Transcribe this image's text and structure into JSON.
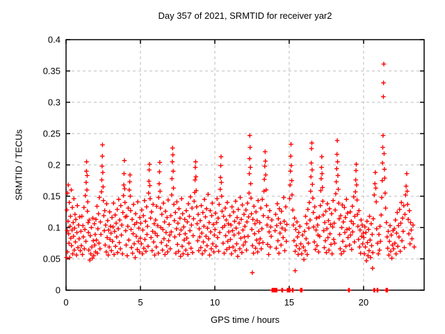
{
  "chart_data": {
    "type": "scatter",
    "title": "Day 357 of 2021, SRMTID for receiver yar2",
    "xlabel": "GPS time / hours",
    "ylabel": "SRMTID / TECUs",
    "xlim": [
      0,
      24.07
    ],
    "ylim": [
      0,
      0.4
    ],
    "x_ticks": [
      0,
      5,
      10,
      15,
      20
    ],
    "x_tick_labels": [
      "0",
      "5",
      "10",
      "15",
      "20"
    ],
    "y_ticks": [
      0,
      0.05,
      0.1,
      0.15,
      0.2,
      0.25,
      0.3,
      0.35,
      0.4
    ],
    "y_tick_labels": [
      "0",
      "0.05",
      "0.1",
      "0.15",
      "0.2",
      "0.25",
      "0.3",
      "0.35",
      "0.4"
    ],
    "grid": true,
    "legend": "none",
    "marker": {
      "shape": "plus",
      "color": "#ff0000",
      "size": 7
    },
    "grid_color": "#b9b9b9",
    "axis_color": "#000000",
    "points_format": "flat [x1,y1,x2,y2,...] hours vs TECUs",
    "points": [
      0.03,
      0.052,
      0.05,
      0.128,
      0.08,
      0.095,
      0.1,
      0.155,
      0.1,
      0.061,
      0.13,
      0.11,
      0.15,
      0.168,
      0.17,
      0.09,
      0.2,
      0.075,
      0.22,
      0.14,
      0.25,
      0.052,
      0.27,
      0.102,
      0.3,
      0.118,
      0.32,
      0.083,
      0.35,
      0.16,
      0.37,
      0.071,
      0.4,
      0.096,
      0.42,
      0.132,
      0.45,
      0.058,
      0.48,
      0.108,
      0.5,
      0.086,
      0.53,
      0.146,
      0.55,
      0.064,
      0.58,
      0.099,
      0.6,
      0.121,
      0.63,
      0.077,
      0.66,
      0.113,
      0.7,
      0.056,
      0.73,
      0.092,
      0.76,
      0.135,
      0.8,
      0.068,
      0.84,
      0.104,
      0.88,
      0.082,
      0.92,
      0.117,
      0.96,
      0.063,
      1.0,
      0.094,
      1.03,
      0.071,
      1.06,
      0.118,
      1.1,
      0.057,
      1.13,
      0.103,
      1.16,
      0.085,
      1.2,
      0.132,
      1.23,
      0.066,
      1.26,
      0.097,
      1.3,
      0.151,
      1.33,
      0.078,
      1.35,
      0.172,
      1.37,
      0.19,
      1.38,
      0.205,
      1.4,
      0.16,
      1.42,
      0.183,
      1.44,
      0.126,
      1.46,
      0.141,
      1.48,
      0.108,
      1.5,
      0.092,
      1.53,
      0.064,
      1.56,
      0.112,
      1.6,
      0.048,
      1.63,
      0.087,
      1.66,
      0.058,
      1.7,
      0.1,
      1.73,
      0.069,
      1.76,
      0.051,
      1.8,
      0.115,
      1.83,
      0.079,
      1.86,
      0.055,
      1.9,
      0.106,
      1.93,
      0.072,
      1.96,
      0.089,
      1.98,
      0.061,
      2.01,
      0.113,
      2.04,
      0.08,
      2.08,
      0.134,
      2.11,
      0.059,
      2.14,
      0.098,
      2.18,
      0.122,
      2.21,
      0.075,
      2.24,
      0.148,
      2.28,
      0.066,
      2.31,
      0.109,
      2.34,
      0.089,
      2.38,
      0.157,
      2.4,
      0.176,
      2.42,
      0.198,
      2.44,
      0.214,
      2.45,
      0.232,
      2.47,
      0.188,
      2.49,
      0.165,
      2.51,
      0.143,
      2.54,
      0.119,
      2.57,
      0.095,
      2.6,
      0.127,
      2.63,
      0.072,
      2.66,
      0.104,
      2.7,
      0.061,
      2.73,
      0.138,
      2.76,
      0.084,
      2.8,
      0.111,
      2.83,
      0.056,
      2.86,
      0.096,
      2.9,
      0.069,
      2.93,
      0.125,
      2.96,
      0.081,
      2.99,
      0.102,
      3.02,
      0.091,
      3.05,
      0.063,
      3.09,
      0.116,
      3.12,
      0.078,
      3.16,
      0.101,
      3.19,
      0.139,
      3.23,
      0.057,
      3.26,
      0.094,
      3.3,
      0.12,
      3.33,
      0.07,
      3.37,
      0.107,
      3.4,
      0.085,
      3.44,
      0.129,
      3.47,
      0.06,
      3.51,
      0.098,
      3.54,
      0.145,
      3.58,
      0.076,
      3.61,
      0.112,
      3.65,
      0.066,
      3.68,
      0.135,
      3.72,
      0.088,
      3.75,
      0.104,
      3.79,
      0.058,
      3.82,
      0.124,
      3.86,
      0.151,
      3.88,
      0.168,
      3.9,
      0.186,
      3.92,
      0.207,
      3.94,
      0.162,
      3.96,
      0.14,
      3.98,
      0.117,
      4.01,
      0.095,
      4.04,
      0.072,
      4.08,
      0.118,
      4.11,
      0.055,
      4.15,
      0.102,
      4.18,
      0.131,
      4.22,
      0.08,
      4.25,
      0.16,
      4.28,
      0.173,
      4.3,
      0.184,
      4.32,
      0.15,
      4.34,
      0.127,
      4.37,
      0.097,
      4.4,
      0.068,
      4.44,
      0.113,
      4.47,
      0.059,
      4.51,
      0.09,
      4.54,
      0.137,
      4.58,
      0.074,
      4.61,
      0.105,
      4.65,
      0.052,
      4.68,
      0.122,
      4.72,
      0.086,
      4.75,
      0.108,
      4.79,
      0.065,
      4.82,
      0.141,
      4.86,
      0.078,
      4.89,
      0.099,
      4.93,
      0.061,
      4.96,
      0.116,
      4.99,
      0.083,
      5.02,
      0.107,
      5.06,
      0.074,
      5.09,
      0.128,
      5.13,
      0.058,
      5.16,
      0.096,
      5.2,
      0.119,
      5.23,
      0.067,
      5.27,
      0.143,
      5.3,
      0.081,
      5.34,
      0.11,
      5.37,
      0.062,
      5.41,
      0.133,
      5.44,
      0.089,
      5.48,
      0.102,
      5.51,
      0.07,
      5.55,
      0.155,
      5.57,
      0.174,
      5.59,
      0.192,
      5.61,
      0.201,
      5.63,
      0.167,
      5.65,
      0.146,
      5.68,
      0.115,
      5.71,
      0.084,
      5.75,
      0.125,
      5.78,
      0.063,
      5.82,
      0.094,
      5.85,
      0.137,
      5.89,
      0.077,
      5.92,
      0.106,
      5.96,
      0.056,
      5.99,
      0.091,
      6.02,
      0.112,
      6.06,
      0.069,
      6.09,
      0.134,
      6.13,
      0.087,
      6.16,
      0.103,
      6.2,
      0.059,
      6.23,
      0.148,
      6.26,
      0.17,
      6.28,
      0.189,
      6.3,
      0.204,
      6.32,
      0.158,
      6.34,
      0.131,
      6.37,
      0.1,
      6.41,
      0.076,
      6.44,
      0.121,
      6.48,
      0.064,
      6.51,
      0.097,
      6.55,
      0.139,
      6.58,
      0.082,
      6.62,
      0.109,
      6.65,
      0.057,
      6.69,
      0.126,
      6.72,
      0.092,
      6.76,
      0.071,
      6.79,
      0.116,
      6.83,
      0.061,
      6.86,
      0.144,
      6.9,
      0.079,
      6.93,
      0.105,
      6.97,
      0.088,
      7.0,
      0.066,
      7.04,
      0.119,
      7.07,
      0.093,
      7.1,
      0.152,
      7.12,
      0.178,
      7.14,
      0.205,
      7.16,
      0.227,
      7.18,
      0.216,
      7.2,
      0.19,
      7.22,
      0.163,
      7.25,
      0.137,
      7.28,
      0.111,
      7.31,
      0.085,
      7.35,
      0.124,
      7.38,
      0.059,
      7.42,
      0.098,
      7.45,
      0.141,
      7.49,
      0.073,
      7.52,
      0.107,
      7.56,
      0.062,
      7.59,
      0.13,
      7.63,
      0.089,
      7.66,
      0.115,
      7.7,
      0.054,
      7.73,
      0.096,
      7.77,
      0.146,
      7.8,
      0.07,
      7.84,
      0.122,
      7.87,
      0.058,
      7.91,
      0.101,
      7.94,
      0.08,
      7.98,
      0.113,
      8.01,
      0.09,
      8.05,
      0.064,
      8.08,
      0.127,
      8.12,
      0.083,
      8.15,
      0.109,
      8.19,
      0.057,
      8.22,
      0.138,
      8.26,
      0.075,
      8.29,
      0.118,
      8.33,
      0.095,
      8.36,
      0.149,
      8.4,
      0.067,
      8.43,
      0.104,
      8.47,
      0.131,
      8.5,
      0.06,
      8.54,
      0.087,
      8.57,
      0.114,
      8.61,
      0.142,
      8.64,
      0.156,
      8.67,
      0.176,
      8.69,
      0.196,
      8.71,
      0.205,
      8.73,
      0.181,
      8.75,
      0.159,
      8.78,
      0.133,
      8.81,
      0.106,
      8.85,
      0.079,
      8.88,
      0.121,
      8.92,
      0.063,
      8.95,
      0.098,
      8.99,
      0.085,
      9.02,
      0.111,
      9.06,
      0.068,
      9.09,
      0.135,
      9.13,
      0.091,
      9.16,
      0.058,
      9.2,
      0.124,
      9.23,
      0.077,
      9.27,
      0.102,
      9.3,
      0.145,
      9.34,
      0.063,
      9.37,
      0.117,
      9.41,
      0.086,
      9.44,
      0.13,
      9.48,
      0.071,
      9.51,
      0.099,
      9.55,
      0.153,
      9.58,
      0.082,
      9.62,
      0.108,
      9.65,
      0.056,
      9.69,
      0.127,
      9.72,
      0.093,
      9.76,
      0.066,
      9.79,
      0.119,
      9.83,
      0.139,
      9.86,
      0.074,
      9.9,
      0.105,
      9.93,
      0.061,
      9.97,
      0.088,
      10.01,
      0.097,
      10.05,
      0.123,
      10.08,
      0.07,
      10.12,
      0.108,
      10.15,
      0.146,
      10.19,
      0.084,
      10.22,
      0.115,
      10.26,
      0.062,
      10.29,
      0.137,
      10.33,
      0.092,
      10.36,
      0.161,
      10.38,
      0.18,
      10.4,
      0.199,
      10.42,
      0.213,
      10.44,
      0.172,
      10.46,
      0.15,
      10.49,
      0.126,
      10.52,
      0.1,
      10.56,
      0.075,
      10.59,
      0.118,
      10.63,
      0.059,
      10.66,
      0.103,
      10.7,
      0.131,
      10.73,
      0.087,
      10.77,
      0.112,
      10.8,
      0.065,
      10.84,
      0.14,
      10.87,
      0.078,
      10.91,
      0.106,
      10.94,
      0.093,
      10.98,
      0.068,
      11.01,
      0.119,
      11.05,
      0.081,
      11.08,
      0.104,
      11.12,
      0.058,
      11.15,
      0.133,
      11.19,
      0.095,
      11.22,
      0.069,
      11.26,
      0.125,
      11.29,
      0.088,
      11.33,
      0.11,
      11.36,
      0.063,
      11.4,
      0.142,
      11.43,
      0.099,
      11.47,
      0.074,
      11.5,
      0.116,
      11.54,
      0.054,
      11.57,
      0.129,
      11.61,
      0.091,
      11.64,
      0.107,
      11.68,
      0.066,
      11.71,
      0.148,
      11.75,
      0.083,
      11.78,
      0.113,
      11.82,
      0.06,
      11.85,
      0.136,
      11.89,
      0.096,
      11.92,
      0.072,
      11.96,
      0.121,
      11.99,
      0.085,
      12.02,
      0.102,
      12.06,
      0.077,
      12.09,
      0.128,
      12.13,
      0.064,
      12.16,
      0.109,
      12.2,
      0.139,
      12.23,
      0.086,
      12.27,
      0.117,
      12.3,
      0.155,
      12.32,
      0.186,
      12.34,
      0.21,
      12.35,
      0.247,
      12.37,
      0.228,
      12.39,
      0.196,
      12.41,
      0.17,
      12.43,
      0.147,
      12.46,
      0.122,
      12.49,
      0.097,
      12.52,
      0.028,
      12.53,
      0.071,
      12.56,
      0.113,
      12.6,
      0.059,
      12.63,
      0.134,
      12.67,
      0.09,
      12.7,
      0.106,
      12.74,
      0.067,
      12.77,
      0.125,
      12.81,
      0.08,
      12.84,
      0.111,
      12.88,
      0.061,
      12.91,
      0.143,
      12.95,
      0.094,
      12.98,
      0.075,
      13.02,
      0.108,
      13.05,
      0.082,
      13.09,
      0.131,
      13.12,
      0.066,
      13.16,
      0.098,
      13.19,
      0.145,
      13.23,
      0.076,
      13.26,
      0.119,
      13.3,
      0.158,
      13.33,
      0.177,
      13.36,
      0.198,
      13.38,
      0.221,
      13.4,
      0.206,
      13.42,
      0.184,
      13.45,
      0.16,
      13.48,
      0.135,
      13.51,
      0.104,
      13.55,
      0.073,
      13.58,
      0.116,
      13.62,
      0.057,
      13.65,
      0.093,
      13.69,
      0.127,
      13.72,
      0.069,
      13.76,
      0.101,
      13.79,
      0.086,
      13.83,
      0.112,
      13.85,
      0,
      13.9,
      0,
      13.94,
      0,
      13.99,
      0,
      14.03,
      0,
      14.08,
      0,
      14.12,
      0,
      14.17,
      0,
      14.05,
      0.095,
      14.09,
      0.121,
      14.13,
      0.067,
      14.16,
      0.103,
      14.2,
      0.138,
      14.24,
      0.079,
      14.27,
      0.114,
      14.31,
      0.059,
      14.34,
      0.13,
      14.38,
      0.091,
      14.41,
      0.107,
      14.45,
      0.072,
      14.48,
      0.126,
      14.5,
      0,
      14.53,
      0,
      14.56,
      0,
      14.52,
      0.099,
      14.59,
      0.084,
      14.63,
      0.148,
      14.66,
      0.11,
      14.7,
      0.063,
      14.73,
      0.096,
      14.77,
      0.133,
      14.8,
      0.078,
      14.84,
      0.105,
      14.87,
      0,
      14.91,
      0,
      14.95,
      0,
      14.99,
      0,
      15.02,
      0,
      15.06,
      0,
      15.03,
      0.146,
      15.06,
      0.168,
      15.08,
      0.19,
      15.1,
      0.214,
      15.12,
      0.233,
      15.14,
      0.199,
      15.17,
      0.175,
      15.19,
      0.152,
      15.21,
      0,
      15.26,
      0,
      15.24,
      0.128,
      15.28,
      0.104,
      15.32,
      0.079,
      15.36,
      0.115,
      15.4,
      0.031,
      15.4,
      0.062,
      15.44,
      0.097,
      15.48,
      0.071,
      15.52,
      0.109,
      15.56,
      0.085,
      15.6,
      0.057,
      15.64,
      0.092,
      15.68,
      0.066,
      15.72,
      0.102,
      15.76,
      0,
      15.81,
      0,
      15.86,
      0,
      15.78,
      0.074,
      15.84,
      0.058,
      15.9,
      0.088,
      15.95,
      0.069,
      15.99,
      0.049,
      16.03,
      0.094,
      16.07,
      0.063,
      16.1,
      0.118,
      16.14,
      0.082,
      16.18,
      0.106,
      16.21,
      0.057,
      16.25,
      0.129,
      16.29,
      0.075,
      16.32,
      0.099,
      16.36,
      0.14,
      16.4,
      0.112,
      16.44,
      0.158,
      16.46,
      0.181,
      16.48,
      0.203,
      16.5,
      0.226,
      16.52,
      0.235,
      16.54,
      0.192,
      16.56,
      0.169,
      16.59,
      0.147,
      16.62,
      0.124,
      16.65,
      0.101,
      16.69,
      0.077,
      16.72,
      0.133,
      16.76,
      0.065,
      16.8,
      0.096,
      16.83,
      0.115,
      16.87,
      0.071,
      16.91,
      0.104,
      16.94,
      0.088,
      16.98,
      0.061,
      17.02,
      0.117,
      17.05,
      0.086,
      17.09,
      0.135,
      17.12,
      0.159,
      17.15,
      0.178,
      17.17,
      0.196,
      17.19,
      0.213,
      17.21,
      0.186,
      17.23,
      0.164,
      17.26,
      0.142,
      17.29,
      0.12,
      17.32,
      0.095,
      17.36,
      0.068,
      17.39,
      0.108,
      17.43,
      0.079,
      17.46,
      0.126,
      17.5,
      0.06,
      17.53,
      0.098,
      17.57,
      0.138,
      17.6,
      0.084,
      17.64,
      0.111,
      17.67,
      0.064,
      17.71,
      0.13,
      17.74,
      0.09,
      17.78,
      0.105,
      17.81,
      0.073,
      17.85,
      0.122,
      17.88,
      0.058,
      17.92,
      0.101,
      17.95,
      0.143,
      17.99,
      0.081,
      18.02,
      0.107,
      18.06,
      0.075,
      18.09,
      0.128,
      18.13,
      0.154,
      18.16,
      0.173,
      18.19,
      0.194,
      18.21,
      0.217,
      18.23,
      0.239,
      18.25,
      0.205,
      18.27,
      0.183,
      18.3,
      0.161,
      18.33,
      0.139,
      18.36,
      0.114,
      18.39,
      0.089,
      18.43,
      0.066,
      18.46,
      0.119,
      18.5,
      0.058,
      18.53,
      0.1,
      18.57,
      0.136,
      18.6,
      0.078,
      18.64,
      0.109,
      18.67,
      0.062,
      18.71,
      0.132,
      18.74,
      0.092,
      18.78,
      0.116,
      18.81,
      0.07,
      18.85,
      0.145,
      18.88,
      0.097,
      18.92,
      0.123,
      18.95,
      0.084,
      18.99,
      0,
      19.04,
      0,
      19.03,
      0.098,
      19.06,
      0.072,
      19.1,
      0.125,
      19.13,
      0.088,
      19.17,
      0.11,
      19.2,
      0.065,
      19.24,
      0.134,
      19.27,
      0.093,
      19.31,
      0.106,
      19.34,
      0.149,
      19.38,
      0.077,
      19.41,
      0.118,
      19.45,
      0.157,
      19.47,
      0.176,
      19.49,
      0.191,
      19.51,
      0.201,
      19.53,
      0.168,
      19.56,
      0.144,
      19.59,
      0.121,
      19.62,
      0.102,
      19.66,
      0.081,
      19.69,
      0.127,
      19.73,
      0.069,
      19.76,
      0.096,
      19.8,
      0.059,
      19.83,
      0.112,
      19.87,
      0.086,
      19.9,
      0.104,
      19.94,
      0.074,
      19.98,
      0.091,
      20.02,
      0.084,
      20.05,
      0.058,
      20.09,
      0.101,
      20.12,
      0.069,
      20.16,
      0.092,
      20.19,
      0.047,
      20.23,
      0.11,
      20.26,
      0.076,
      20.3,
      0.055,
      20.33,
      0.097,
      20.37,
      0.063,
      20.4,
      0.118,
      20.44,
      0.08,
      20.47,
      0.052,
      20.51,
      0.106,
      20.54,
      0.071,
      20.58,
      0.089,
      20.6,
      0.035,
      20.62,
      0.06,
      20.65,
      0.114,
      20.69,
      0,
      20.74,
      0,
      20.72,
      0.152,
      20.76,
      0.17,
      20.79,
      0.188,
      20.82,
      0.163,
      20.85,
      0.141,
      20.88,
      0.098,
      20.91,
      0,
      20.96,
      0,
      20.94,
      0.075,
      20.99,
      0.058,
      21.03,
      0.089,
      21.07,
      0.064,
      21.1,
      0.102,
      21.14,
      0.078,
      21.18,
      0.12,
      21.22,
      0.148,
      21.25,
      0.175,
      21.27,
      0.203,
      21.29,
      0.228,
      21.31,
      0.247,
      21.33,
      0.309,
      21.34,
      0.331,
      21.36,
      0.361,
      21.38,
      0.218,
      21.4,
      0.193,
      21.42,
      0.179,
      21.45,
      0.155,
      21.48,
      0.131,
      21.51,
      0,
      21.56,
      0,
      21.6,
      0,
      21.53,
      0.108,
      21.58,
      0.085,
      21.62,
      0.067,
      21.66,
      0.094,
      21.7,
      0.056,
      21.74,
      0.078,
      21.78,
      0.103,
      21.82,
      0.062,
      21.86,
      0.088,
      21.9,
      0.051,
      21.94,
      0.072,
      21.98,
      0.095,
      22.02,
      0.066,
      22.06,
      0.098,
      22.1,
      0.075,
      22.14,
      0.112,
      22.18,
      0.058,
      22.22,
      0.091,
      22.26,
      0.124,
      22.3,
      0.07,
      22.34,
      0.103,
      22.38,
      0.085,
      22.42,
      0.129,
      22.46,
      0.062,
      22.5,
      0.107,
      22.54,
      0.14,
      22.58,
      0.079,
      22.62,
      0.115,
      22.66,
      0.094,
      22.7,
      0.135,
      22.74,
      0.068,
      22.78,
      0.121,
      22.82,
      0.152,
      22.86,
      0.166,
      22.9,
      0.186,
      22.93,
      0.158,
      22.96,
      0.137,
      23.0,
      0.113,
      23.04,
      0.09,
      23.08,
      0.127,
      23.12,
      0.074,
      23.16,
      0.108,
      23.2,
      0.096,
      23.25,
      0.082,
      23.32,
      0.104,
      23.4,
      0.069
    ]
  }
}
